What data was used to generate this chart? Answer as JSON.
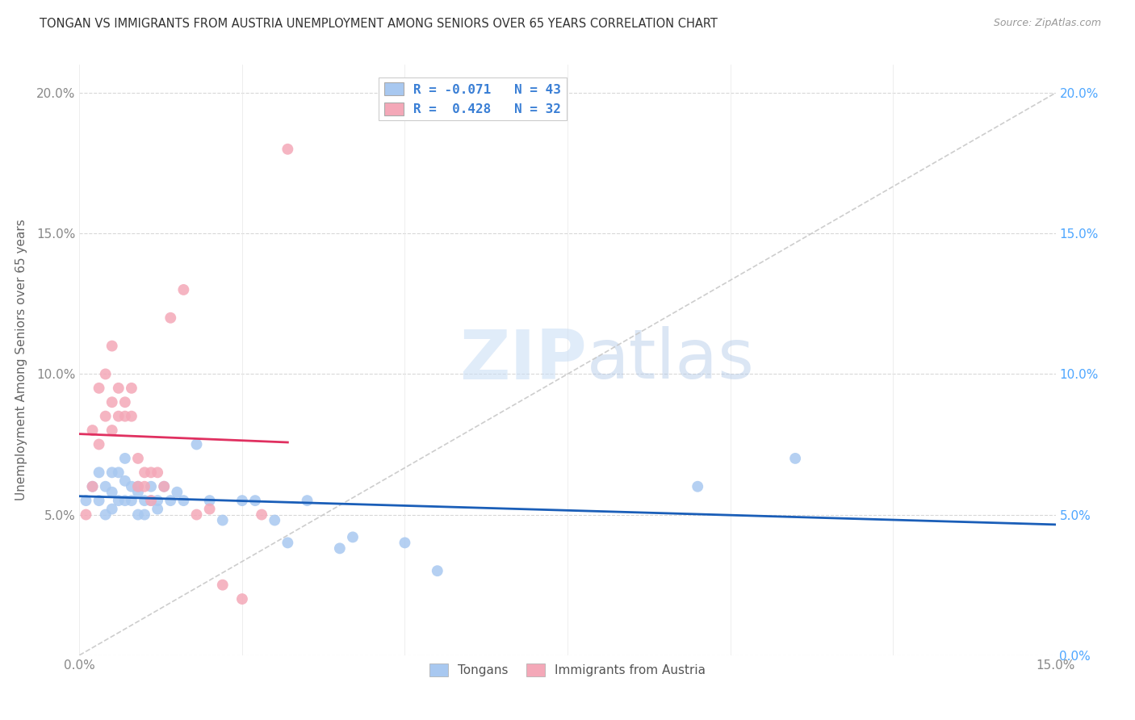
{
  "title": "TONGAN VS IMMIGRANTS FROM AUSTRIA UNEMPLOYMENT AMONG SENIORS OVER 65 YEARS CORRELATION CHART",
  "source": "Source: ZipAtlas.com",
  "ylabel": "Unemployment Among Seniors over 65 years",
  "xlim": [
    0.0,
    0.15
  ],
  "ylim": [
    0.0,
    0.21
  ],
  "yticks": [
    0.0,
    0.05,
    0.1,
    0.15,
    0.2
  ],
  "ytick_labels_left": [
    "",
    "5.0%",
    "10.0%",
    "15.0%",
    "20.0%"
  ],
  "ytick_labels_right": [
    "0.0%",
    "5.0%",
    "10.0%",
    "15.0%",
    "20.0%"
  ],
  "xticks": [
    0.0,
    0.025,
    0.05,
    0.075,
    0.1,
    0.125,
    0.15
  ],
  "xtick_labels": [
    "0.0%",
    "",
    "",
    "",
    "",
    "",
    "15.0%"
  ],
  "legend_line1": "R = -0.071   N = 43",
  "legend_line2": "R =  0.428   N = 32",
  "legend_label_blue": "Tongans",
  "legend_label_pink": "Immigrants from Austria",
  "blue_color": "#a8c8f0",
  "pink_color": "#f4a8b8",
  "blue_line_color": "#1a5eb8",
  "pink_line_color": "#e03060",
  "diagonal_color": "#c8c8c8",
  "watermark_zip": "ZIP",
  "watermark_atlas": "atlas",
  "tongans_x": [
    0.001,
    0.002,
    0.003,
    0.003,
    0.004,
    0.004,
    0.005,
    0.005,
    0.005,
    0.006,
    0.006,
    0.007,
    0.007,
    0.007,
    0.008,
    0.008,
    0.009,
    0.009,
    0.009,
    0.01,
    0.01,
    0.011,
    0.011,
    0.012,
    0.012,
    0.013,
    0.014,
    0.015,
    0.016,
    0.018,
    0.02,
    0.022,
    0.025,
    0.027,
    0.03,
    0.032,
    0.035,
    0.04,
    0.042,
    0.05,
    0.055,
    0.095,
    0.11
  ],
  "tongans_y": [
    0.055,
    0.06,
    0.055,
    0.065,
    0.05,
    0.06,
    0.058,
    0.052,
    0.065,
    0.055,
    0.065,
    0.055,
    0.062,
    0.07,
    0.055,
    0.06,
    0.05,
    0.058,
    0.06,
    0.05,
    0.055,
    0.055,
    0.06,
    0.052,
    0.055,
    0.06,
    0.055,
    0.058,
    0.055,
    0.075,
    0.055,
    0.048,
    0.055,
    0.055,
    0.048,
    0.04,
    0.055,
    0.038,
    0.042,
    0.04,
    0.03,
    0.06,
    0.07
  ],
  "austria_x": [
    0.001,
    0.002,
    0.002,
    0.003,
    0.003,
    0.004,
    0.004,
    0.005,
    0.005,
    0.005,
    0.006,
    0.006,
    0.007,
    0.007,
    0.008,
    0.008,
    0.009,
    0.009,
    0.01,
    0.01,
    0.011,
    0.011,
    0.012,
    0.013,
    0.014,
    0.016,
    0.018,
    0.02,
    0.022,
    0.025,
    0.028,
    0.032
  ],
  "austria_y": [
    0.05,
    0.06,
    0.08,
    0.075,
    0.095,
    0.1,
    0.085,
    0.09,
    0.08,
    0.11,
    0.085,
    0.095,
    0.085,
    0.09,
    0.085,
    0.095,
    0.06,
    0.07,
    0.06,
    0.065,
    0.065,
    0.055,
    0.065,
    0.06,
    0.12,
    0.13,
    0.05,
    0.052,
    0.025,
    0.02,
    0.05,
    0.18
  ]
}
